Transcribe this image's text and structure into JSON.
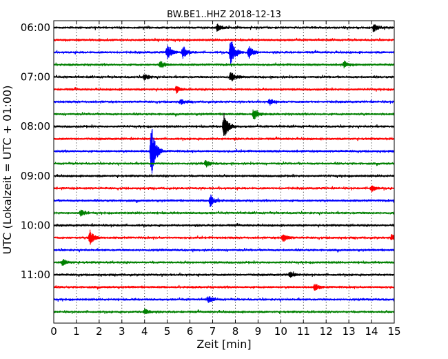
{
  "chart_data": {
    "type": "line",
    "title": "BW.BE1..HHZ 2018-12-13",
    "xlabel": "Zeit  [min]",
    "ylabel": "UTC (Lokalzeit = UTC + 01:00)",
    "xlim": [
      0,
      15
    ],
    "x_ticks": [
      "0",
      "1",
      "2",
      "3",
      "4",
      "5",
      "6",
      "7",
      "8",
      "9",
      "10",
      "11",
      "12",
      "13",
      "14",
      "15"
    ],
    "y_tick_labels": [
      "06:00",
      "07:00",
      "08:00",
      "09:00",
      "10:00",
      "11:00"
    ],
    "trace_interval_min": 15,
    "grid": {
      "vertical": true,
      "style": "dotted"
    },
    "colors": [
      "#000000",
      "#ff0000",
      "#0000ff",
      "#008000"
    ],
    "series": [
      {
        "start": "06:00",
        "color": "#000000",
        "events": [
          {
            "t": 7.2,
            "amp": 0.35
          },
          {
            "t": 14.1,
            "amp": 0.45
          }
        ]
      },
      {
        "start": "06:15",
        "color": "#ff0000",
        "events": []
      },
      {
        "start": "06:30",
        "color": "#0000ff",
        "events": [
          {
            "t": 5.0,
            "amp": 0.75
          },
          {
            "t": 5.7,
            "amp": 0.55
          },
          {
            "t": 7.8,
            "amp": 1.4
          },
          {
            "t": 8.6,
            "amp": 0.6
          }
        ]
      },
      {
        "start": "06:45",
        "color": "#008000",
        "events": [
          {
            "t": 4.7,
            "amp": 0.35
          },
          {
            "t": 12.8,
            "amp": 0.3
          }
        ]
      },
      {
        "start": "07:00",
        "color": "#000000",
        "events": [
          {
            "t": 4.0,
            "amp": 0.3
          },
          {
            "t": 7.8,
            "amp": 0.6
          }
        ]
      },
      {
        "start": "07:15",
        "color": "#ff0000",
        "events": [
          {
            "t": 5.4,
            "amp": 0.3
          }
        ]
      },
      {
        "start": "07:30",
        "color": "#0000ff",
        "events": [
          {
            "t": 5.6,
            "amp": 0.25
          },
          {
            "t": 9.5,
            "amp": 0.3
          }
        ]
      },
      {
        "start": "07:45",
        "color": "#008000",
        "events": [
          {
            "t": 8.8,
            "amp": 0.6
          }
        ]
      },
      {
        "start": "08:00",
        "color": "#000000",
        "events": [
          {
            "t": 7.5,
            "amp": 1.3
          }
        ]
      },
      {
        "start": "08:15",
        "color": "#ff0000",
        "events": []
      },
      {
        "start": "08:30",
        "color": "#0000ff",
        "events": [
          {
            "t": 4.3,
            "amp": 2.8
          }
        ]
      },
      {
        "start": "08:45",
        "color": "#008000",
        "events": [
          {
            "t": 6.7,
            "amp": 0.3
          }
        ]
      },
      {
        "start": "09:00",
        "color": "#000000",
        "events": []
      },
      {
        "start": "09:15",
        "color": "#ff0000",
        "events": [
          {
            "t": 14.0,
            "amp": 0.3
          }
        ]
      },
      {
        "start": "09:30",
        "color": "#0000ff",
        "events": [
          {
            "t": 6.9,
            "amp": 0.6
          }
        ]
      },
      {
        "start": "09:45",
        "color": "#008000",
        "events": [
          {
            "t": 1.2,
            "amp": 0.3
          }
        ]
      },
      {
        "start": "10:00",
        "color": "#000000",
        "events": []
      },
      {
        "start": "10:15",
        "color": "#ff0000",
        "events": [
          {
            "t": 1.6,
            "amp": 0.7
          },
          {
            "t": 10.1,
            "amp": 0.4
          },
          {
            "t": 14.9,
            "amp": 0.3
          }
        ]
      },
      {
        "start": "10:30",
        "color": "#0000ff",
        "events": []
      },
      {
        "start": "10:45",
        "color": "#008000",
        "events": [
          {
            "t": 0.4,
            "amp": 0.3
          }
        ]
      },
      {
        "start": "11:00",
        "color": "#000000",
        "events": [
          {
            "t": 10.4,
            "amp": 0.3
          }
        ]
      },
      {
        "start": "11:15",
        "color": "#ff0000",
        "events": [
          {
            "t": 11.5,
            "amp": 0.35
          }
        ]
      },
      {
        "start": "11:30",
        "color": "#0000ff",
        "events": [
          {
            "t": 6.8,
            "amp": 0.3
          }
        ]
      },
      {
        "start": "11:45",
        "color": "#008000",
        "events": [
          {
            "t": 4.0,
            "amp": 0.3
          }
        ]
      }
    ]
  }
}
